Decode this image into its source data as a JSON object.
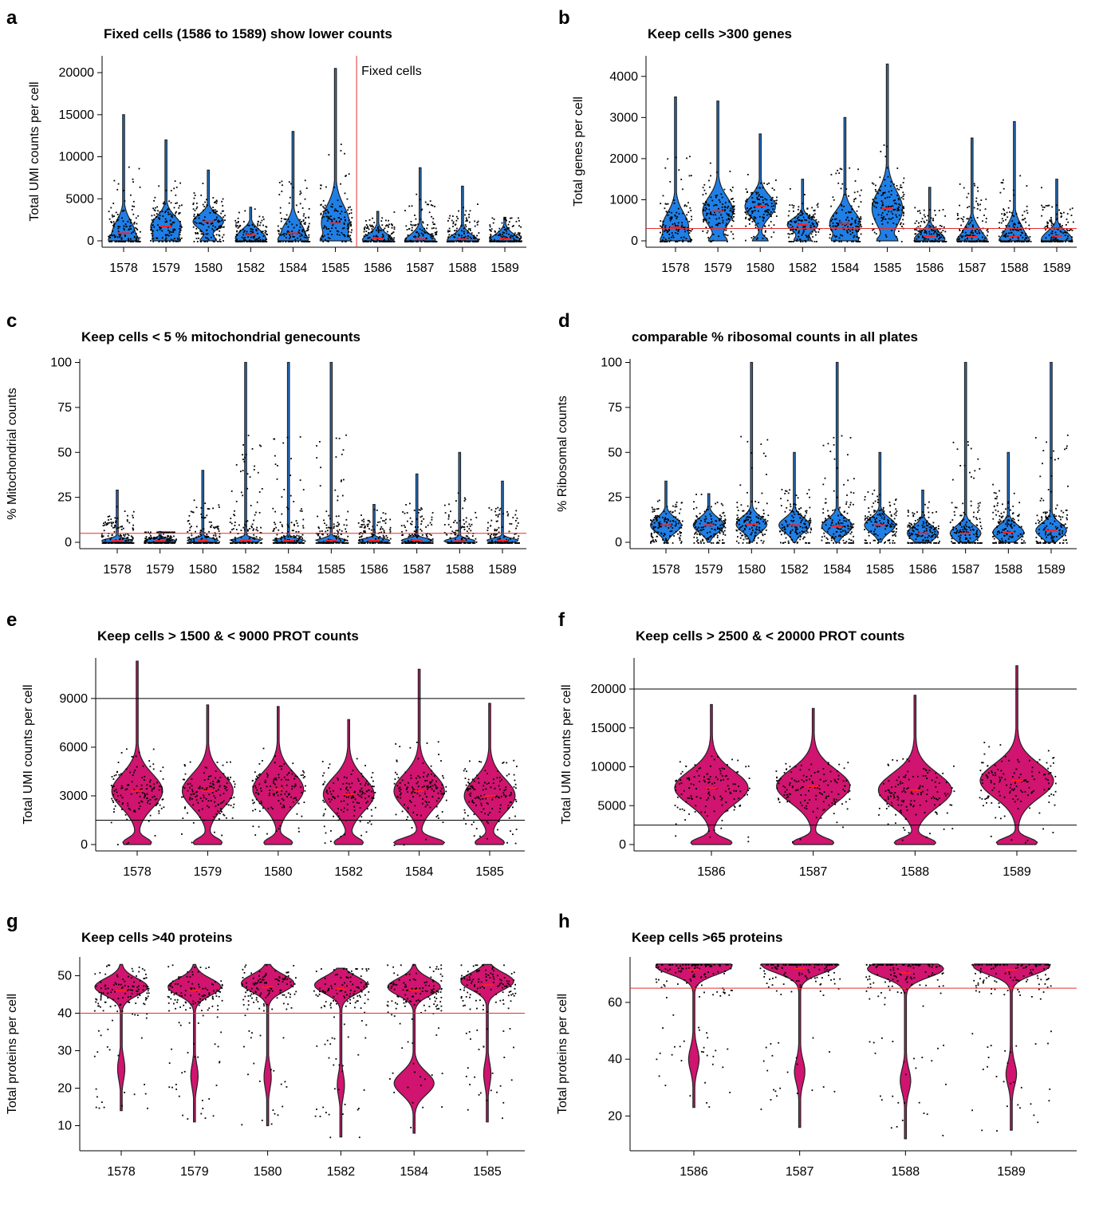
{
  "colors": {
    "blue": "#1f7fe6",
    "magenta": "#d0146f",
    "outline": "#222222",
    "median": "#ff2020",
    "threshold_red": "#e03030",
    "threshold_black": "#000000",
    "points": "#000000"
  },
  "panels": [
    {
      "label": "a",
      "title": "Fixed cells (1586 to 1589) show lower counts",
      "ylabel": "Total UMI counts per cell",
      "annotation": "Fixed cells"
    },
    {
      "label": "b",
      "title": "Keep cells >300 genes",
      "ylabel": "Total genes per cell",
      "annotation": ""
    },
    {
      "label": "c",
      "title": "Keep cells < 5 % mitochondrial genecounts",
      "ylabel": "% Mitochondrial counts",
      "annotation": ""
    },
    {
      "label": "d",
      "title": "comparable % ribosomal counts in all plates",
      "ylabel": "% Ribosomal counts",
      "annotation": ""
    },
    {
      "label": "e",
      "title": "Keep cells > 1500 & < 9000 PROT counts",
      "ylabel": "Total UMI counts per cell",
      "annotation": ""
    },
    {
      "label": "f",
      "title": "Keep cells > 2500 & < 20000 PROT counts",
      "ylabel": "Total UMI counts per cell",
      "annotation": ""
    },
    {
      "label": "g",
      "title": "Keep cells >40 proteins",
      "ylabel": "Total proteins per cell",
      "annotation": ""
    },
    {
      "label": "h",
      "title": "Keep cells >65 proteins",
      "ylabel": "Total proteins per cell",
      "annotation": ""
    }
  ],
  "chart_data": [
    {
      "panel": "a",
      "type": "violin",
      "color": "blue",
      "categories": [
        "1578",
        "1579",
        "1580",
        "1582",
        "1584",
        "1585",
        "1586",
        "1587",
        "1588",
        "1589"
      ],
      "ylim": [
        0,
        22000
      ],
      "yticks": [
        0,
        5000,
        10000,
        15000,
        20000
      ],
      "medians": [
        900,
        1700,
        2300,
        700,
        900,
        2100,
        300,
        200,
        200,
        250
      ],
      "maxima": [
        15000,
        12000,
        8400,
        4000,
        13000,
        20500,
        3500,
        8700,
        6500,
        2800
      ],
      "vlines_between": [
        {
          "after": "1585",
          "color": "threshold_red"
        }
      ],
      "hlines": []
    },
    {
      "panel": "b",
      "type": "violin",
      "color": "blue",
      "categories": [
        "1578",
        "1579",
        "1580",
        "1582",
        "1584",
        "1585",
        "1586",
        "1587",
        "1588",
        "1589"
      ],
      "ylim": [
        0,
        4500
      ],
      "yticks": [
        0,
        1000,
        2000,
        3000,
        4000
      ],
      "medians": [
        330,
        720,
        840,
        390,
        420,
        780,
        110,
        100,
        110,
        120
      ],
      "maxima": [
        3500,
        3400,
        2600,
        1500,
        3000,
        4300,
        1300,
        2500,
        2900,
        1500
      ],
      "hlines": [
        {
          "y": 300,
          "color": "threshold_red"
        }
      ]
    },
    {
      "panel": "c",
      "type": "violin",
      "color": "blue",
      "categories": [
        "1578",
        "1579",
        "1580",
        "1582",
        "1584",
        "1585",
        "1586",
        "1587",
        "1588",
        "1589"
      ],
      "ylim": [
        0,
        102
      ],
      "yticks": [
        0,
        25,
        50,
        75,
        100
      ],
      "medians": [
        0.8,
        0.8,
        1.0,
        1.0,
        0.9,
        1.0,
        0.9,
        1.0,
        0.7,
        1.0
      ],
      "maxima": [
        29,
        6,
        40,
        100,
        100,
        100,
        21,
        38,
        50,
        34
      ],
      "hlines": [
        {
          "y": 5,
          "color": "threshold_red"
        }
      ]
    },
    {
      "panel": "d",
      "type": "violin",
      "color": "blue",
      "categories": [
        "1578",
        "1579",
        "1580",
        "1582",
        "1584",
        "1585",
        "1586",
        "1587",
        "1588",
        "1589"
      ],
      "ylim": [
        0,
        102
      ],
      "yticks": [
        0,
        25,
        50,
        75,
        100
      ],
      "medians": [
        9.5,
        9.5,
        10,
        9.5,
        9,
        9.5,
        5,
        5,
        5.5,
        6.5
      ],
      "maxima": [
        34,
        27,
        100,
        50,
        100,
        50,
        29,
        100,
        50,
        100
      ],
      "hlines": []
    },
    {
      "panel": "e",
      "type": "violin",
      "color": "magenta",
      "categories": [
        "1578",
        "1579",
        "1580",
        "1582",
        "1584",
        "1585"
      ],
      "ylim": [
        0,
        11500
      ],
      "yticks": [
        0,
        3000,
        6000,
        9000
      ],
      "medians": [
        3300,
        3300,
        3400,
        3100,
        3300,
        3000
      ],
      "maxima": [
        11300,
        8600,
        8500,
        7700,
        10800,
        8700
      ],
      "hlines": [
        {
          "y": 9000,
          "color": "threshold_black"
        },
        {
          "y": 1500,
          "color": "threshold_black"
        }
      ]
    },
    {
      "panel": "f",
      "type": "violin",
      "color": "magenta",
      "categories": [
        "1586",
        "1587",
        "1588",
        "1589"
      ],
      "ylim": [
        0,
        24000
      ],
      "yticks": [
        0,
        5000,
        10000,
        15000,
        20000
      ],
      "medians": [
        7300,
        7500,
        7000,
        8200
      ],
      "maxima": [
        18000,
        17500,
        19200,
        23000
      ],
      "hlines": [
        {
          "y": 20000,
          "color": "threshold_black"
        },
        {
          "y": 2500,
          "color": "threshold_black"
        }
      ]
    },
    {
      "panel": "g",
      "type": "violin",
      "color": "magenta",
      "categories": [
        "1578",
        "1579",
        "1580",
        "1582",
        "1584",
        "1585"
      ],
      "ylim": [
        5,
        55
      ],
      "yticks": [
        10,
        20,
        30,
        40,
        50
      ],
      "medians": [
        46,
        46,
        47,
        46.5,
        46,
        47.5
      ],
      "maxima": [
        53,
        53,
        53,
        52,
        53,
        53
      ],
      "minima": [
        14,
        11,
        10,
        7,
        8,
        11
      ],
      "hlines": [
        {
          "y": 40,
          "color": "threshold_red"
        }
      ]
    },
    {
      "panel": "h",
      "type": "violin",
      "color": "magenta",
      "categories": [
        "1586",
        "1587",
        "1588",
        "1589"
      ],
      "ylim": [
        10,
        76
      ],
      "yticks": [
        20,
        40,
        60
      ],
      "medians": [
        71.5,
        72,
        70.5,
        71.5
      ],
      "maxima": [
        73.5,
        73.5,
        73.5,
        73.5
      ],
      "minima": [
        23,
        16,
        12,
        15
      ],
      "hlines": [
        {
          "y": 65,
          "color": "threshold_red"
        }
      ]
    }
  ]
}
